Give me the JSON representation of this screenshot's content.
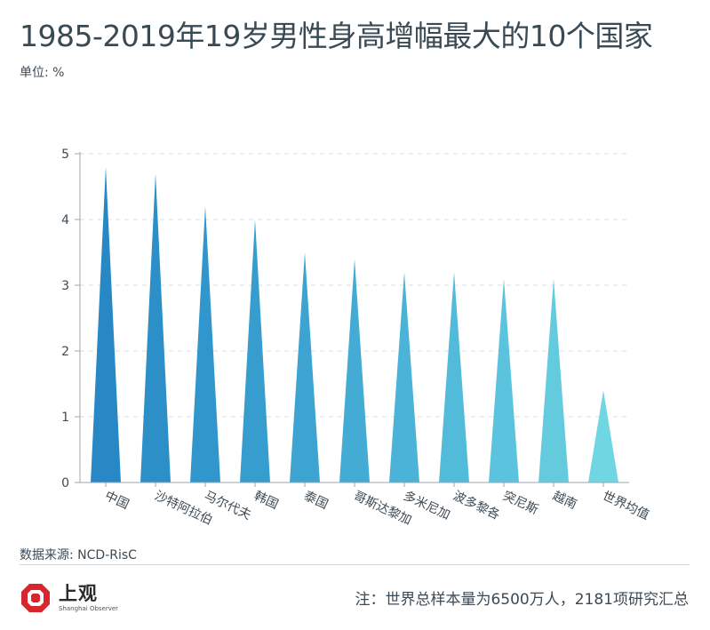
{
  "title": "1985-2019年19岁男性身高增幅最大的10个国家",
  "unit_label": "单位: %",
  "source": "数据来源: NCD-RisC",
  "logo": {
    "name": "上观",
    "subtitle": "Shanghai Observer",
    "icon": "shanghai-observer-logo-icon",
    "color": "#d8262f"
  },
  "note": "注：世界总样本量为6500万人，2181项研究汇总",
  "chart_data": {
    "type": "bar",
    "title": "1985-2019年19岁男性身高增幅最大的10个国家",
    "ylabel": "单位: %",
    "xlabel": "",
    "categories": [
      "中国",
      "沙特阿拉伯",
      "马尔代夫",
      "韩国",
      "泰国",
      "哥斯达黎加",
      "多米尼加",
      "波多黎各",
      "突尼斯",
      "越南",
      "世界均值"
    ],
    "values": [
      4.8,
      4.7,
      4.2,
      4.0,
      3.5,
      3.4,
      3.2,
      3.2,
      3.1,
      3.1,
      1.4
    ],
    "ylim": [
      0,
      5
    ],
    "yticks": [
      "0",
      "1",
      "2",
      "3",
      "4",
      "5"
    ],
    "grid": true,
    "bar_shape": "triangle",
    "colors": [
      "#2788c5",
      "#2c8fc8",
      "#3196cb",
      "#379dce",
      "#3da4d1",
      "#44abd4",
      "#4bb3d7",
      "#53bbda",
      "#5bc3dd",
      "#64cbdf",
      "#6fd6e2"
    ]
  }
}
